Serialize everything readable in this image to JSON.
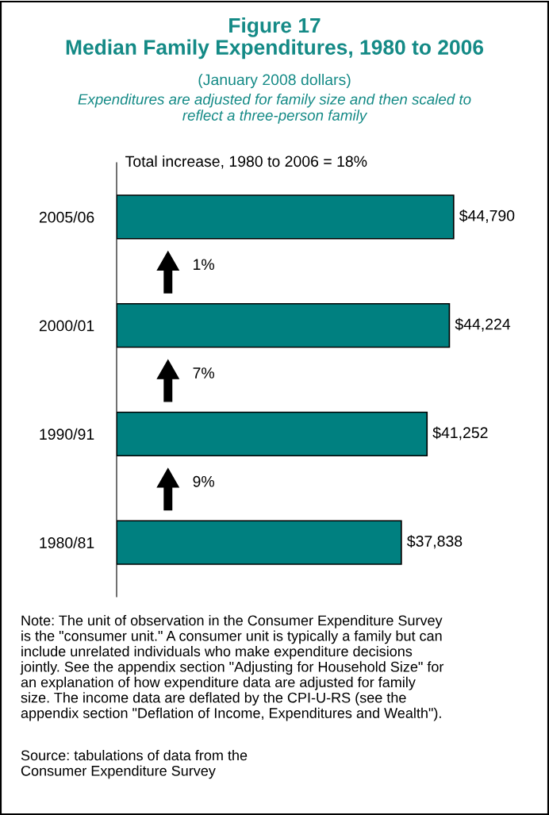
{
  "chart_data": {
    "type": "bar",
    "orientation": "horizontal",
    "title": "Figure 17\nMedian Family Expenditures, 1980 to 2006",
    "subtitle": "(January 2008 dollars)",
    "categories": [
      "2005/06",
      "2000/01",
      "1990/91",
      "1980/81"
    ],
    "values": [
      44790,
      44224,
      41252,
      37838
    ],
    "value_labels": [
      "$44,790",
      "$44,224",
      "$41,252",
      "$37,838"
    ],
    "color": "#008080",
    "annotations": [
      "Expenditures are adjusted for family size and then scaled to\nreflect a three-person family",
      "Total increase, 1980 to 2006 = 18%",
      "1%",
      "7%",
      "9%",
      "Note: The unit of observation in the Consumer Expenditure Survey\nis the \"consumer unit.\" A consumer unit is typically a family but can\ninclude unrelated individuals who make expenditure decisions\njointly. See the appendix section \"Adjusting for Household Size\" for\nan explanation of how expenditure data are adjusted for family\nsize. The income data are deflated by the CPI-U-RS (see the\nappendix section \"Deflation of Income, Expenditures and Wealth\").",
      "Source: tabulations of data from the\nConsumer Expenditure Survey"
    ],
    "legend": false,
    "grid": false
  }
}
